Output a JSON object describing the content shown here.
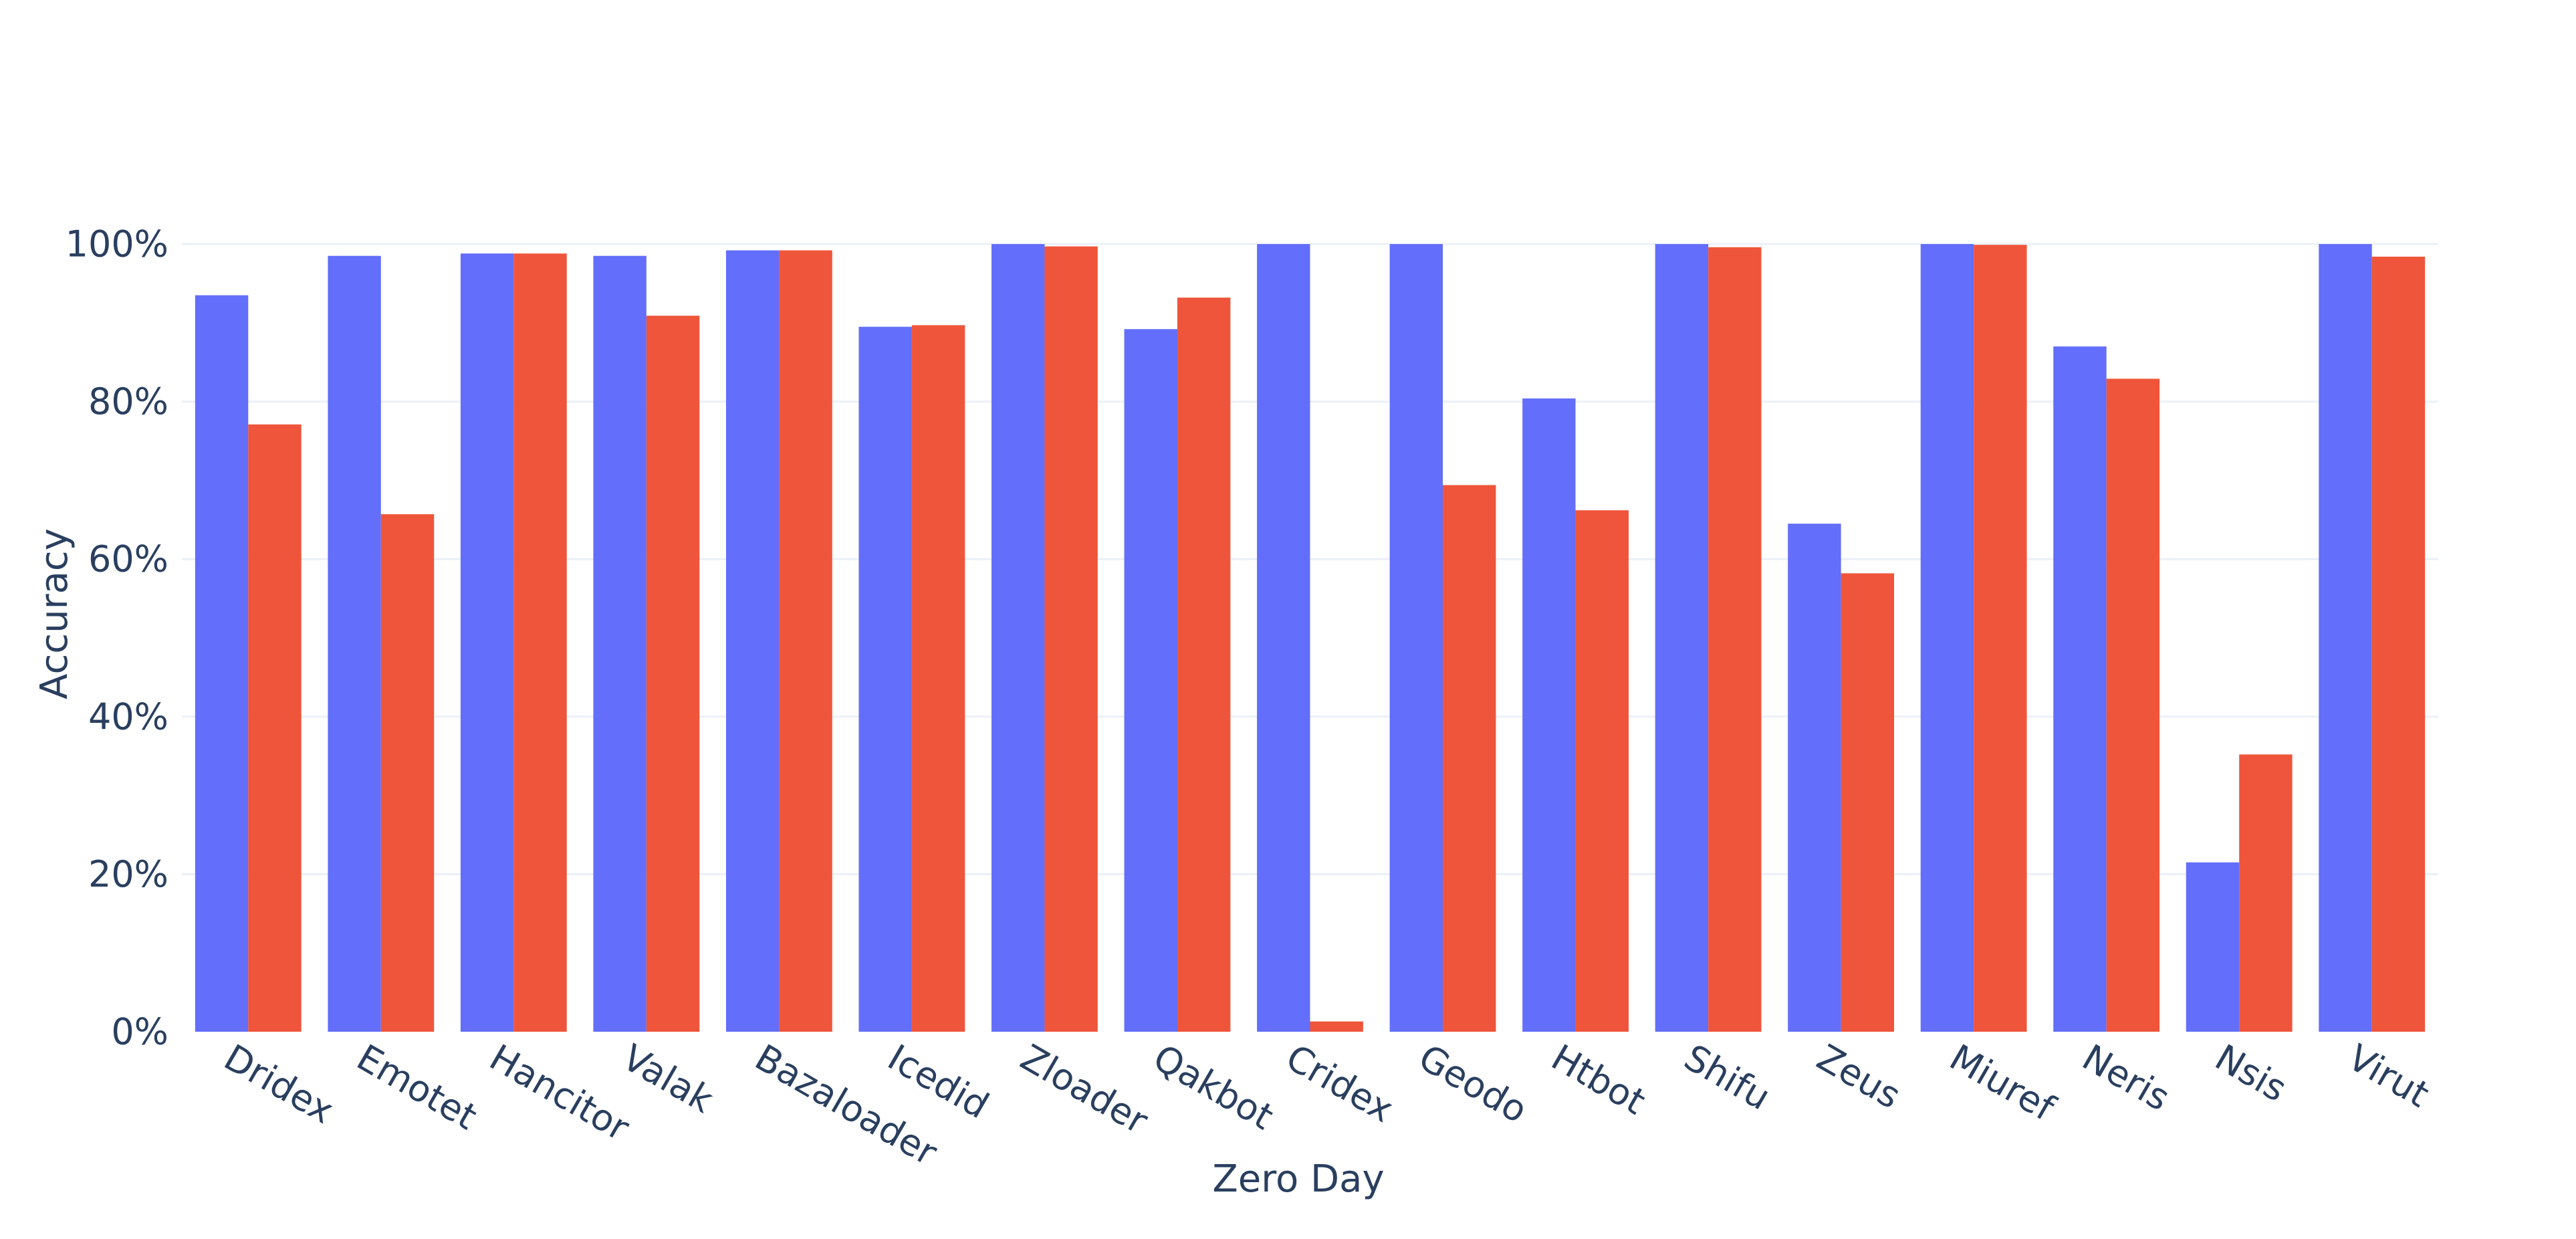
{
  "chart_data": {
    "type": "bar",
    "barmode": "group",
    "xlabel": "Zero Day",
    "ylabel": "Accuracy",
    "ylim": [
      0,
      1
    ],
    "y_tick_format": "percent",
    "y_ticks": [
      0,
      0.2,
      0.4,
      0.6,
      0.8,
      1.0
    ],
    "y_tick_labels": [
      "0%",
      "20%",
      "40%",
      "60%",
      "80%",
      "100%"
    ],
    "grid": true,
    "legend": "none",
    "categories": [
      "Dridex",
      "Emotet",
      "Hancitor",
      "Valak",
      "Bazaloader",
      "Icedid",
      "Zloader",
      "Qakbot",
      "Cridex",
      "Geodo",
      "Htbot",
      "Shifu",
      "Zeus",
      "Miuref",
      "Neris",
      "Nsis",
      "Virut"
    ],
    "series": [
      {
        "color": "#636efa",
        "values": [
          0.935,
          0.985,
          0.988,
          0.985,
          0.992,
          0.895,
          1.0,
          0.892,
          1.0,
          1.0,
          0.804,
          1.0,
          0.645,
          1.0,
          0.87,
          0.215,
          1.0
        ]
      },
      {
        "color": "#ef553b",
        "values": [
          0.771,
          0.657,
          0.988,
          0.909,
          0.992,
          0.897,
          0.997,
          0.932,
          0.013,
          0.694,
          0.662,
          0.996,
          0.582,
          0.999,
          0.829,
          0.352,
          0.984
        ]
      }
    ]
  }
}
